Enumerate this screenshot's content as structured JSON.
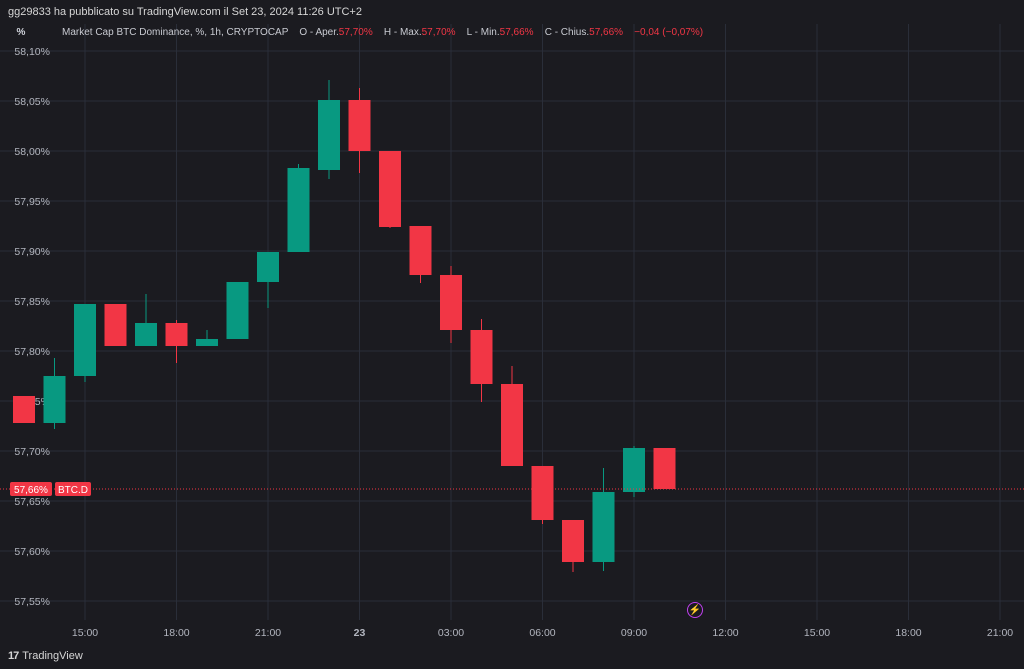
{
  "header": {
    "publisher_line": "gg29833 ha pubblicato su TradingView.com il Set 23, 2024 11:26 UTC+2",
    "percent_button": "%",
    "symbol_desc": "Market Cap BTC Dominance, %, 1h, CRYPTOCAP",
    "open_label": "O - Aper.",
    "open_value": "57,70%",
    "high_label": "H - Max.",
    "high_value": "57,70%",
    "low_label": "L - Min.",
    "low_value": "57,66%",
    "close_label": "C - Chius.",
    "close_value": "57,66%",
    "change_value": "−0,04 (−0,07%)"
  },
  "footer": {
    "brand": "TradingView",
    "brand_mark": "17"
  },
  "colors": {
    "up": "#089981",
    "down": "#f23645",
    "grid": "#2a2e39",
    "background": "#1b1b20",
    "alert": "#c040f0"
  },
  "icons": {
    "alert": "lightning-alert-icon"
  },
  "chart_data": {
    "type": "candlestick",
    "title": "Market Cap BTC Dominance, %, 1h, CRYPTOCAP",
    "ylim": [
      57.53,
      58.12
    ],
    "y_ticks": [
      {
        "v": 58.1,
        "label": "58,10%"
      },
      {
        "v": 58.05,
        "label": "58,05%"
      },
      {
        "v": 58.0,
        "label": "58,00%"
      },
      {
        "v": 57.95,
        "label": "57,95%"
      },
      {
        "v": 57.9,
        "label": "57,90%"
      },
      {
        "v": 57.85,
        "label": "57,85%"
      },
      {
        "v": 57.8,
        "label": "57,80%"
      },
      {
        "v": 57.75,
        "label": "57,75%"
      },
      {
        "v": 57.7,
        "label": "57,70%"
      },
      {
        "v": 57.65,
        "label": "57,65%"
      },
      {
        "v": 57.6,
        "label": "57,60%"
      },
      {
        "v": 57.55,
        "label": "57,55%"
      }
    ],
    "x_ticks": [
      {
        "t": 15,
        "label": "15:00"
      },
      {
        "t": 18,
        "label": "18:00"
      },
      {
        "t": 21,
        "label": "21:00"
      },
      {
        "t": 24,
        "label": "23"
      },
      {
        "t": 27,
        "label": "03:00"
      },
      {
        "t": 30,
        "label": "06:00"
      },
      {
        "t": 33,
        "label": "09:00"
      },
      {
        "t": 36,
        "label": "12:00"
      },
      {
        "t": 39,
        "label": "15:00"
      },
      {
        "t": 42,
        "label": "18:00"
      },
      {
        "t": 45,
        "label": "21:00"
      }
    ],
    "candles": [
      {
        "t": 13,
        "o": 57.755,
        "h": 57.755,
        "l": 57.728,
        "c": 57.728
      },
      {
        "t": 14,
        "o": 57.728,
        "h": 57.793,
        "l": 57.722,
        "c": 57.775
      },
      {
        "t": 15,
        "o": 57.775,
        "h": 57.847,
        "l": 57.769,
        "c": 57.847
      },
      {
        "t": 16,
        "o": 57.847,
        "h": 57.847,
        "l": 57.805,
        "c": 57.805
      },
      {
        "t": 17,
        "o": 57.805,
        "h": 57.857,
        "l": 57.805,
        "c": 57.828
      },
      {
        "t": 18,
        "o": 57.828,
        "h": 57.831,
        "l": 57.788,
        "c": 57.805
      },
      {
        "t": 19,
        "o": 57.805,
        "h": 57.821,
        "l": 57.805,
        "c": 57.812
      },
      {
        "t": 20,
        "o": 57.812,
        "h": 57.869,
        "l": 57.812,
        "c": 57.869
      },
      {
        "t": 21,
        "o": 57.869,
        "h": 57.899,
        "l": 57.843,
        "c": 57.899
      },
      {
        "t": 22,
        "o": 57.899,
        "h": 57.987,
        "l": 57.899,
        "c": 57.983
      },
      {
        "t": 23,
        "o": 57.981,
        "h": 58.071,
        "l": 57.972,
        "c": 58.051
      },
      {
        "t": 24,
        "o": 58.051,
        "h": 58.063,
        "l": 57.978,
        "c": 58.0
      },
      {
        "t": 25,
        "o": 58.0,
        "h": 58.0,
        "l": 57.923,
        "c": 57.924
      },
      {
        "t": 26,
        "o": 57.925,
        "h": 57.925,
        "l": 57.868,
        "c": 57.876
      },
      {
        "t": 27,
        "o": 57.876,
        "h": 57.885,
        "l": 57.808,
        "c": 57.821
      },
      {
        "t": 28,
        "o": 57.821,
        "h": 57.832,
        "l": 57.749,
        "c": 57.767
      },
      {
        "t": 29,
        "o": 57.767,
        "h": 57.785,
        "l": 57.685,
        "c": 57.685
      },
      {
        "t": 30,
        "o": 57.685,
        "h": 57.685,
        "l": 57.627,
        "c": 57.631
      },
      {
        "t": 31,
        "o": 57.631,
        "h": 57.631,
        "l": 57.579,
        "c": 57.589
      },
      {
        "t": 32,
        "o": 57.589,
        "h": 57.683,
        "l": 57.58,
        "c": 57.659
      },
      {
        "t": 33,
        "o": 57.659,
        "h": 57.705,
        "l": 57.654,
        "c": 57.703
      },
      {
        "t": 34,
        "o": 57.703,
        "h": 57.703,
        "l": 57.662,
        "c": 57.662
      }
    ],
    "last_price": {
      "v": 57.662,
      "label": "57,66%",
      "symbol": "BTC.D"
    }
  }
}
